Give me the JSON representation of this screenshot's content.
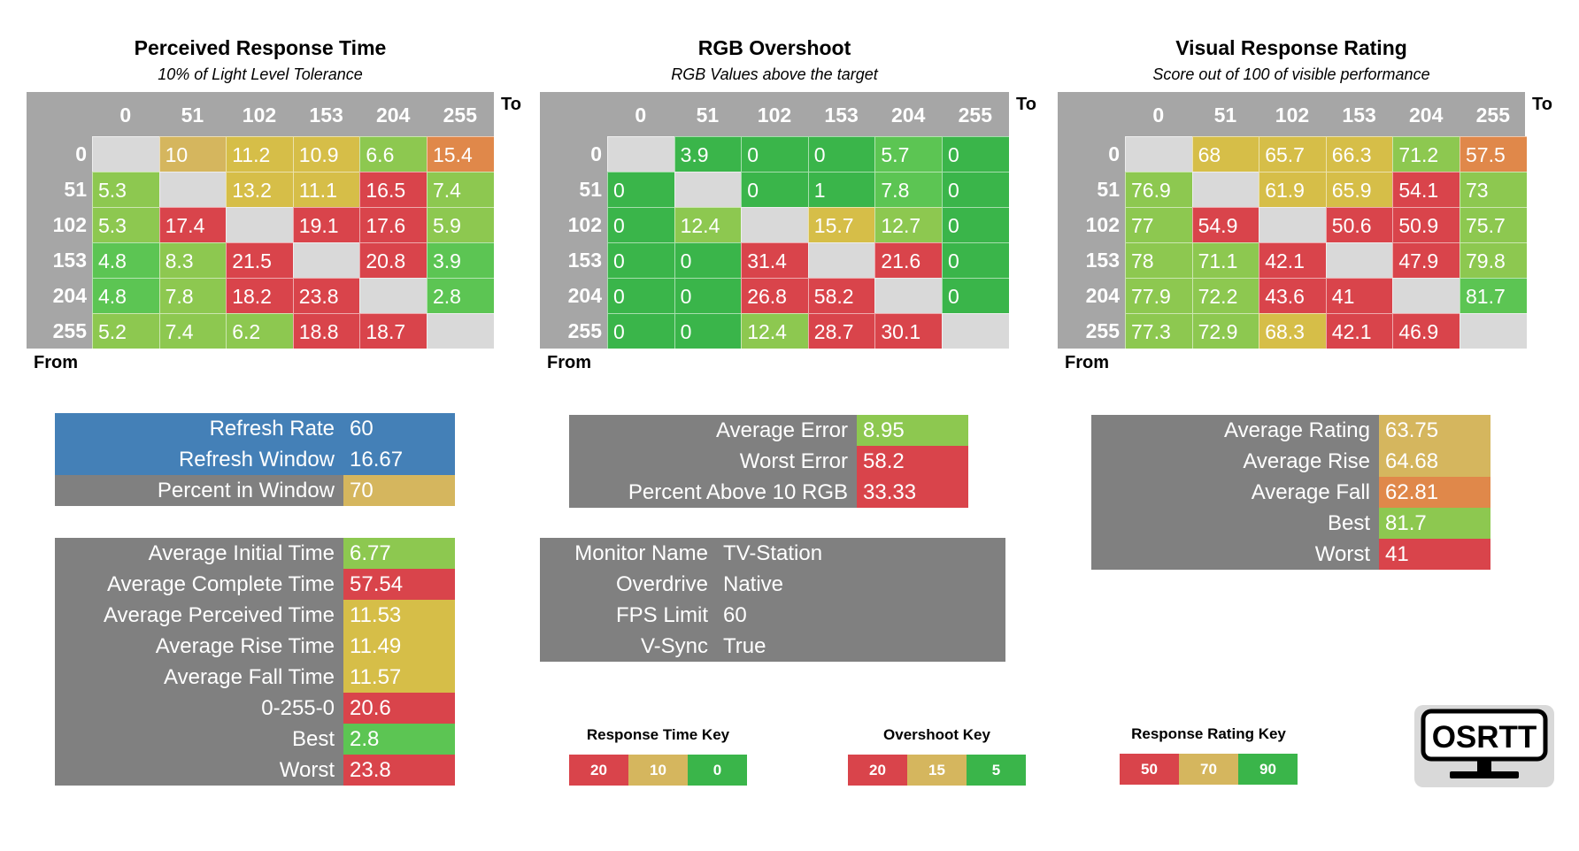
{
  "colors": {
    "red": "#d9444b",
    "orange": "#e0884a",
    "yellow": "#d6be48",
    "gold": "#d5b65e",
    "lime": "#8dc850",
    "green": "#5cc553",
    "brightgreen": "#3ab54a",
    "gray": "#808080",
    "diag": "#d9d9d9",
    "header": "#a6a6a6",
    "blue": "#4480b7"
  },
  "chart_data": [
    {
      "type": "heatmap",
      "title": "Perceived Response Time",
      "subtitle": "10% of Light Level Tolerance",
      "xlabel": "To",
      "ylabel": "From",
      "x": [
        "0",
        "51",
        "102",
        "153",
        "204",
        "255"
      ],
      "y": [
        "0",
        "51",
        "102",
        "153",
        "204",
        "255"
      ],
      "values": [
        [
          null,
          "10",
          "11.2",
          "10.9",
          "6.6",
          "15.4"
        ],
        [
          "5.3",
          null,
          "13.2",
          "11.1",
          "16.5",
          "7.4"
        ],
        [
          "5.3",
          "17.4",
          null,
          "19.1",
          "17.6",
          "5.9"
        ],
        [
          "4.8",
          "8.3",
          "21.5",
          null,
          "20.8",
          "3.9"
        ],
        [
          "4.8",
          "7.8",
          "18.2",
          "23.8",
          null,
          "2.8"
        ],
        [
          "5.2",
          "7.4",
          "6.2",
          "18.8",
          "18.7",
          null
        ]
      ],
      "cell_colors": [
        [
          "diag",
          "gold",
          "yellow",
          "yellow",
          "lime",
          "orange"
        ],
        [
          "lime",
          "diag",
          "yellow",
          "yellow",
          "red",
          "lime"
        ],
        [
          "lime",
          "red",
          "diag",
          "red",
          "red",
          "lime"
        ],
        [
          "green",
          "lime",
          "red",
          "diag",
          "red",
          "green"
        ],
        [
          "green",
          "lime",
          "red",
          "red",
          "diag",
          "green"
        ],
        [
          "lime",
          "lime",
          "lime",
          "red",
          "red",
          "diag"
        ]
      ]
    },
    {
      "type": "heatmap",
      "title": "RGB Overshoot",
      "subtitle": "RGB Values above the target",
      "xlabel": "To",
      "ylabel": "From",
      "x": [
        "0",
        "51",
        "102",
        "153",
        "204",
        "255"
      ],
      "y": [
        "0",
        "51",
        "102",
        "153",
        "204",
        "255"
      ],
      "values": [
        [
          null,
          "3.9",
          "0",
          "0",
          "5.7",
          "0"
        ],
        [
          "0",
          null,
          "0",
          "1",
          "7.8",
          "0"
        ],
        [
          "0",
          "12.4",
          null,
          "15.7",
          "12.7",
          "0"
        ],
        [
          "0",
          "0",
          "31.4",
          null,
          "21.6",
          "0"
        ],
        [
          "0",
          "0",
          "26.8",
          "58.2",
          null,
          "0"
        ],
        [
          "0",
          "0",
          "12.4",
          "28.7",
          "30.1",
          null
        ]
      ],
      "cell_colors": [
        [
          "diag",
          "brightgreen",
          "brightgreen",
          "brightgreen",
          "green",
          "brightgreen"
        ],
        [
          "brightgreen",
          "diag",
          "brightgreen",
          "brightgreen",
          "green",
          "brightgreen"
        ],
        [
          "brightgreen",
          "lime",
          "diag",
          "yellow",
          "lime",
          "brightgreen"
        ],
        [
          "brightgreen",
          "brightgreen",
          "red",
          "diag",
          "red",
          "brightgreen"
        ],
        [
          "brightgreen",
          "brightgreen",
          "red",
          "red",
          "diag",
          "brightgreen"
        ],
        [
          "brightgreen",
          "brightgreen",
          "lime",
          "red",
          "red",
          "diag"
        ]
      ]
    },
    {
      "type": "heatmap",
      "title": "Visual Response Rating",
      "subtitle": "Score out of 100 of visible performance",
      "xlabel": "To",
      "ylabel": "From",
      "x": [
        "0",
        "51",
        "102",
        "153",
        "204",
        "255"
      ],
      "y": [
        "0",
        "51",
        "102",
        "153",
        "204",
        "255"
      ],
      "values": [
        [
          null,
          "68",
          "65.7",
          "66.3",
          "71.2",
          "57.5"
        ],
        [
          "76.9",
          null,
          "61.9",
          "65.9",
          "54.1",
          "73"
        ],
        [
          "77",
          "54.9",
          null,
          "50.6",
          "50.9",
          "75.7"
        ],
        [
          "78",
          "71.1",
          "42.1",
          null,
          "47.9",
          "79.8"
        ],
        [
          "77.9",
          "72.2",
          "43.6",
          "41",
          null,
          "81.7"
        ],
        [
          "77.3",
          "72.9",
          "68.3",
          "42.1",
          "46.9",
          null
        ]
      ],
      "cell_colors": [
        [
          "diag",
          "yellow",
          "yellow",
          "yellow",
          "lime",
          "orange"
        ],
        [
          "lime",
          "diag",
          "yellow",
          "yellow",
          "red",
          "lime"
        ],
        [
          "lime",
          "red",
          "diag",
          "red",
          "red",
          "lime"
        ],
        [
          "lime",
          "lime",
          "red",
          "diag",
          "red",
          "lime"
        ],
        [
          "lime",
          "lime",
          "red",
          "red",
          "diag",
          "green"
        ],
        [
          "lime",
          "lime",
          "yellow",
          "red",
          "red",
          "diag"
        ]
      ]
    }
  ],
  "stats": {
    "refresh": [
      {
        "label": "Refresh Rate",
        "value": "60",
        "label_color": "blue",
        "value_color": "blue"
      },
      {
        "label": "Refresh Window",
        "value": "16.67",
        "label_color": "blue",
        "value_color": "blue"
      },
      {
        "label": "Percent in Window",
        "value": "70",
        "label_color": "gray",
        "value_color": "gold"
      }
    ],
    "times": [
      {
        "label": "Average Initial Time",
        "value": "6.77",
        "value_color": "lime"
      },
      {
        "label": "Average Complete Time",
        "value": "57.54",
        "value_color": "red"
      },
      {
        "label": "Average Perceived Time",
        "value": "11.53",
        "value_color": "yellow"
      },
      {
        "label": "Average Rise Time",
        "value": "11.49",
        "value_color": "yellow"
      },
      {
        "label": "Average Fall Time",
        "value": "11.57",
        "value_color": "yellow"
      },
      {
        "label": "0-255-0",
        "value": "20.6",
        "value_color": "red"
      },
      {
        "label": "Best",
        "value": "2.8",
        "value_color": "green"
      },
      {
        "label": "Worst",
        "value": "23.8",
        "value_color": "red"
      }
    ],
    "overshoot": [
      {
        "label": "Average Error",
        "value": "8.95",
        "value_color": "lime"
      },
      {
        "label": "Worst Error",
        "value": "58.2",
        "value_color": "red"
      },
      {
        "label": "Percent Above 10 RGB",
        "value": "33.33",
        "value_color": "red"
      }
    ],
    "monitor": [
      {
        "label": "Monitor Name",
        "value": "TV-Station"
      },
      {
        "label": "Overdrive",
        "value": "Native"
      },
      {
        "label": "FPS Limit",
        "value": "60"
      },
      {
        "label": "V-Sync",
        "value": "True"
      }
    ],
    "rating": [
      {
        "label": "Average Rating",
        "value": "63.75",
        "value_color": "gold"
      },
      {
        "label": "Average Rise",
        "value": "64.68",
        "value_color": "gold"
      },
      {
        "label": "Average Fall",
        "value": "62.81",
        "value_color": "orange"
      },
      {
        "label": "Best",
        "value": "81.7",
        "value_color": "lime"
      },
      {
        "label": "Worst",
        "value": "41",
        "value_color": "red"
      }
    ]
  },
  "keys": [
    {
      "title": "Response Time Key",
      "values": [
        "20",
        "10",
        "0"
      ],
      "colors": [
        "red",
        "gold",
        "brightgreen"
      ]
    },
    {
      "title": "Overshoot Key",
      "values": [
        "20",
        "15",
        "5"
      ],
      "colors": [
        "red",
        "gold",
        "brightgreen"
      ]
    },
    {
      "title": "Response Rating Key",
      "values": [
        "50",
        "70",
        "90"
      ],
      "colors": [
        "red",
        "gold",
        "brightgreen"
      ]
    }
  ],
  "logo": {
    "text": "OSRTT",
    "icon": "monitor-icon"
  }
}
